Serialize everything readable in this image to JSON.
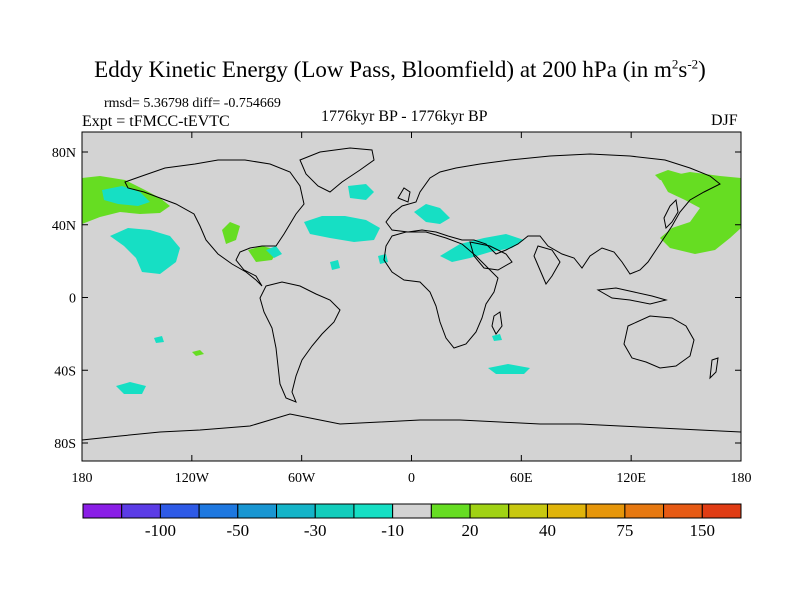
{
  "title": {
    "main": "Eddy Kinetic Energy (Low Pass, Bloomfield) at 200 hPa (in m",
    "exp1": "2",
    "mid": "s",
    "exp2": "-2",
    "close": ")"
  },
  "stats": {
    "rmsd": "rmsd= 5.36798 diff= -0.754669"
  },
  "expt": "Expt = tFMCC-tEVTC",
  "period": "1776kyr BP - 1776kyr BP",
  "season": "DJF",
  "map": {
    "lat_ticks": [
      "80N",
      "40N",
      "0",
      "40S",
      "80S"
    ],
    "lon_ticks": [
      "180",
      "120W",
      "60W",
      "0",
      "60E",
      "120E",
      "180"
    ],
    "background_color": "#d3d3d3",
    "regions": [
      {
        "name": "north-pacific-east-positive",
        "color": "#66dd22"
      },
      {
        "name": "north-pacific-west-positive",
        "color": "#66dd22"
      },
      {
        "name": "aleutian-positive",
        "color": "#66dd22"
      },
      {
        "name": "alaska-negative",
        "color": "#16dfc4"
      },
      {
        "name": "north-atlantic-negative",
        "color": "#16dfc4"
      },
      {
        "name": "greenland-negative",
        "color": "#16dfc4"
      },
      {
        "name": "mediterranean-negative",
        "color": "#16dfc4"
      },
      {
        "name": "middle-east-negative",
        "color": "#16dfc4"
      },
      {
        "name": "southern-ocean-negative",
        "color": "#16dfc4"
      },
      {
        "name": "caribbean-positive",
        "color": "#66dd22"
      },
      {
        "name": "gulf-mexico-negative",
        "color": "#16dfc4"
      },
      {
        "name": "central-us-positive",
        "color": "#66dd22"
      }
    ]
  },
  "colorbar": {
    "colors": [
      "#8a1ee6",
      "#5b3ce6",
      "#2e5ae6",
      "#1e78e0",
      "#1996d2",
      "#14b4c8",
      "#12cdbc",
      "#16dfc4",
      "#d3d3d3",
      "#66dd22",
      "#a0d214",
      "#c8c810",
      "#e0b40a",
      "#e6960a",
      "#e67810",
      "#e65a14",
      "#e03c14"
    ],
    "labels": [
      "-100",
      "-50",
      "-30",
      "-10",
      "20",
      "40",
      "75",
      "150"
    ]
  }
}
